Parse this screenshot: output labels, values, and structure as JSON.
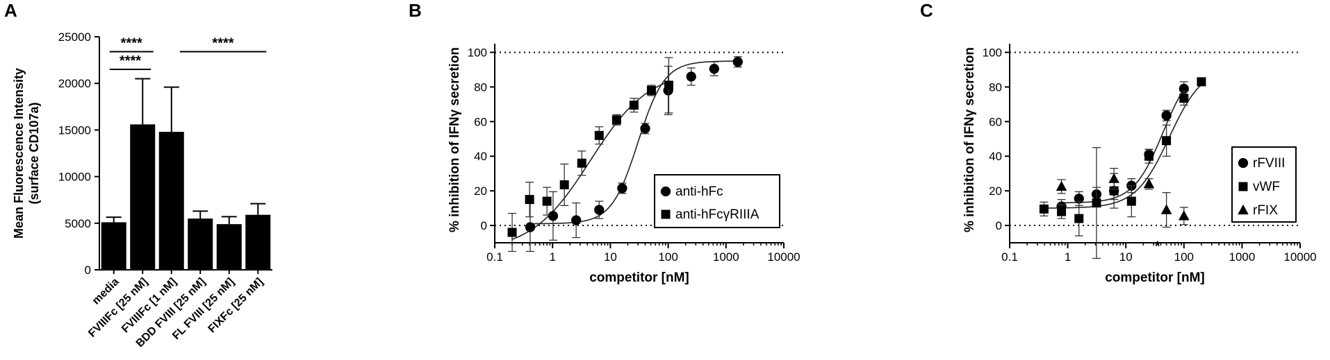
{
  "chart_data": [
    {
      "panel": "A",
      "type": "bar",
      "ylabel": [
        "Mean Fluorescence Intensity",
        "(surface CD107a)"
      ],
      "ylim": [
        0,
        25000
      ],
      "yticks": [
        0,
        5000,
        10000,
        15000,
        20000,
        25000
      ],
      "categories": [
        "media",
        "FVIIIFc [25 nM]",
        "FVIIIFc [1 nM]",
        "BDD FVIII [25 nM]",
        "FL FVIII [25 nM]",
        "FIXFc [25 nM]"
      ],
      "values": [
        5100,
        15600,
        14800,
        5500,
        4900,
        5900
      ],
      "error_plus": [
        550,
        4900,
        4800,
        800,
        800,
        1200
      ],
      "significance": [
        {
          "from": 0,
          "to": 1,
          "label": "****",
          "y": 21500
        },
        {
          "from": 0,
          "to": 2,
          "label": "****",
          "y": 23400
        },
        {
          "from": 2,
          "to": 5,
          "label": "****",
          "y": 23400
        }
      ]
    },
    {
      "panel": "B",
      "type": "scatter",
      "xscale": "log",
      "xlim": [
        0.1,
        10000
      ],
      "ylim": [
        -10,
        105
      ],
      "xticks": [
        0.1,
        1,
        10,
        100,
        1000,
        10000
      ],
      "xticklabels": [
        "0.1",
        "1",
        "10",
        "100",
        "1000",
        "10000"
      ],
      "yticks": [
        0,
        20,
        40,
        60,
        80,
        100
      ],
      "xlabel": "competitor [nM]",
      "ylabel": "% inhibition of IFNγ secretion",
      "reference_lines": [
        0,
        100
      ],
      "legend_position": "lower-right",
      "series": [
        {
          "name": "anti-hFc",
          "marker": "circle",
          "x": [
            0.41,
            1.02,
            2.56,
            6.4,
            16,
            40,
            100,
            250,
            625,
            1600
          ],
          "y": [
            -1,
            5.5,
            3,
            9,
            21.5,
            56,
            78,
            86,
            90.5,
            94.5
          ],
          "err": [
            14,
            14,
            10,
            5,
            3,
            3,
            14,
            5,
            4,
            3
          ],
          "fit": {
            "bottom": 1,
            "top": 95,
            "ec50": 30,
            "hill": 1.9
          }
        },
        {
          "name": "anti-hFcγRIIIA",
          "marker": "square",
          "x": [
            0.2,
            0.4,
            0.8,
            1.6,
            3.2,
            6.4,
            12.8,
            25.6,
            51.2,
            102.4
          ],
          "y": [
            -4,
            15,
            14,
            23.5,
            36,
            52,
            61,
            69.5,
            78,
            81
          ],
          "err": [
            11,
            10,
            8,
            12,
            7,
            5,
            3,
            4,
            3,
            16
          ],
          "fit": {
            "bottom": -15,
            "top": 90,
            "ec50": 4.5,
            "hill": 0.85
          }
        }
      ]
    },
    {
      "panel": "C",
      "type": "scatter",
      "xscale": "log",
      "xlim": [
        0.1,
        10000
      ],
      "ylim": [
        -10,
        105
      ],
      "xticks": [
        0.1,
        1,
        10,
        100,
        1000,
        10000
      ],
      "xticklabels": [
        "0.1",
        "1",
        "10",
        "100",
        "1000",
        "10000"
      ],
      "yticks": [
        0,
        20,
        40,
        60,
        80,
        100
      ],
      "xlabel": "competitor [nM]",
      "ylabel": "% inhibition of IFNγ secretion",
      "reference_lines": [
        0,
        100
      ],
      "legend_position": "center-right",
      "annotation": {
        "text": "*",
        "x": 35,
        "y": -9
      },
      "series": [
        {
          "name": "rFVIII",
          "marker": "circle",
          "x": [
            0.78,
            1.56,
            3.125,
            6.25,
            12.5,
            25,
            50,
            100
          ],
          "y": [
            11,
            15.5,
            18,
            20,
            23,
            41,
            63.5,
            79
          ],
          "err": [
            4,
            4,
            4,
            5,
            4,
            3,
            3,
            4
          ],
          "fit": {
            "bottom": 13,
            "top": 95,
            "ec50": 44,
            "hill": 1.7
          }
        },
        {
          "name": "vWF",
          "marker": "square",
          "x": [
            0.39,
            0.78,
            1.56,
            3.125,
            6.25,
            12.5,
            25,
            50,
            100,
            200
          ],
          "y": [
            9.5,
            8,
            4,
            13,
            20,
            14,
            40,
            49,
            73.5,
            83
          ],
          "err": [
            4,
            4,
            10,
            32,
            10,
            9,
            4,
            9,
            4,
            2
          ],
          "fit": {
            "bottom": 10,
            "top": 92,
            "ec50": 56,
            "hill": 1.5
          }
        },
        {
          "name": "rFIX",
          "marker": "triangle",
          "x": [
            0.78,
            6.25,
            25,
            50,
            100
          ],
          "y": [
            22.5,
            27,
            24,
            9,
            5.5
          ],
          "err": [
            4,
            6,
            3,
            10,
            5
          ]
        }
      ]
    }
  ]
}
